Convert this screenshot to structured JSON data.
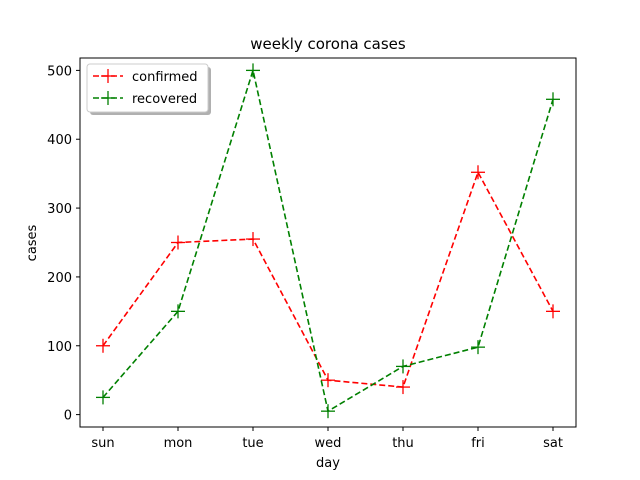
{
  "chart_data": {
    "type": "line",
    "title": "weekly corona cases",
    "xlabel": "day",
    "ylabel": "cases",
    "categories": [
      "sun",
      "mon",
      "tue",
      "wed",
      "thu",
      "fri",
      "sat"
    ],
    "ylim": [
      -18,
      518
    ],
    "yticks": [
      0,
      100,
      200,
      300,
      400,
      500
    ],
    "grid": false,
    "legend_position": "top-left",
    "marker": "plus",
    "line_style": "dashed",
    "series": [
      {
        "name": "confirmed",
        "color": "#ff0000",
        "values": [
          100,
          250,
          255,
          50,
          40,
          352,
          150
        ]
      },
      {
        "name": "recovered",
        "color": "#008000",
        "values": [
          25,
          150,
          500,
          5,
          70,
          98,
          458
        ]
      }
    ]
  }
}
